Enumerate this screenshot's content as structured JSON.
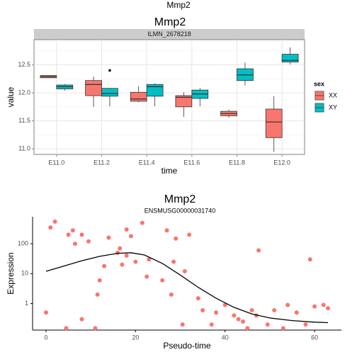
{
  "figure_title": "Mmp2",
  "colors": {
    "XX": "#F8766D",
    "XY": "#00BFC4",
    "panel": "#ffffff",
    "strip": "#cccccc",
    "grid": "#ebebeb"
  },
  "chart_data": [
    {
      "type": "box",
      "title": "Mmp2",
      "facet_label": "ILMN_2678218",
      "xlabel": "time",
      "ylabel": "value",
      "categories": [
        "E11.0",
        "E11.2",
        "E11.4",
        "E11.6",
        "E11.8",
        "E12.0"
      ],
      "ylim": [
        10.9,
        12.95
      ],
      "yticks": [
        11.0,
        11.5,
        12.0,
        12.5
      ],
      "ytick_labels": [
        "11.0",
        "11.5",
        "12.0",
        "12.5"
      ],
      "grid": true,
      "legend": {
        "title": "sex",
        "position": "right",
        "entries": [
          "XX",
          "XY"
        ]
      },
      "series": [
        {
          "name": "XX",
          "boxes": [
            {
              "min": 12.27,
              "q1": 12.27,
              "median": 12.29,
              "q3": 12.31,
              "max": 12.31
            },
            {
              "min": 11.75,
              "q1": 11.95,
              "median": 12.15,
              "q3": 12.22,
              "max": 12.29
            },
            {
              "min": 11.83,
              "q1": 11.85,
              "median": 11.89,
              "q3": 12.01,
              "max": 12.12
            },
            {
              "min": 11.57,
              "q1": 11.75,
              "median": 11.92,
              "q3": 11.95,
              "max": 12.01
            },
            {
              "min": 11.56,
              "q1": 11.59,
              "median": 11.63,
              "q3": 11.67,
              "max": 11.7
            },
            {
              "min": 10.95,
              "q1": 11.2,
              "median": 11.48,
              "q3": 11.71,
              "max": 11.94
            }
          ],
          "outliers": []
        },
        {
          "name": "XY",
          "boxes": [
            {
              "min": 12.04,
              "q1": 12.07,
              "median": 12.11,
              "q3": 12.14,
              "max": 12.16
            },
            {
              "min": 11.76,
              "q1": 11.94,
              "median": 11.99,
              "q3": 12.08,
              "max": 12.09
            },
            {
              "min": 11.76,
              "q1": 11.94,
              "median": 12.11,
              "q3": 12.15,
              "max": 12.17
            },
            {
              "min": 11.76,
              "q1": 11.9,
              "median": 11.98,
              "q3": 12.05,
              "max": 12.09
            },
            {
              "min": 12.13,
              "q1": 12.22,
              "median": 12.32,
              "q3": 12.43,
              "max": 12.54
            },
            {
              "min": 12.51,
              "q1": 12.55,
              "median": 12.58,
              "q3": 12.69,
              "max": 12.81
            }
          ],
          "outliers": [
            {
              "category": "E11.2",
              "value": 12.4
            }
          ]
        }
      ]
    },
    {
      "type": "scatter",
      "title": "Mmp2",
      "subtitle": "ENSMUSG00000031740",
      "xlabel": "Pseudo-time",
      "ylabel": "Expression",
      "y_scale": "log",
      "xlim": [
        -3,
        66
      ],
      "ylim": [
        0.13,
        800
      ],
      "xticks": [
        0,
        20,
        40,
        60
      ],
      "xtick_labels": [
        "0",
        "20",
        "40",
        "60"
      ],
      "yticks": [
        1,
        10,
        100
      ],
      "ytick_labels": [
        "1",
        "10",
        "100"
      ],
      "grid": false,
      "points": [
        {
          "x": 0,
          "y": 0.5
        },
        {
          "x": 1,
          "y": 350
        },
        {
          "x": 2,
          "y": 550
        },
        {
          "x": 5,
          "y": 200
        },
        {
          "x": 4.5,
          "y": 0.15
        },
        {
          "x": 6,
          "y": 280
        },
        {
          "x": 6.5,
          "y": 100
        },
        {
          "x": 8,
          "y": 0.3
        },
        {
          "x": 8,
          "y": 200
        },
        {
          "x": 9.5,
          "y": 120
        },
        {
          "x": 11,
          "y": 0.15
        },
        {
          "x": 11.5,
          "y": 2
        },
        {
          "x": 12,
          "y": 6
        },
        {
          "x": 13,
          "y": 18
        },
        {
          "x": 14,
          "y": 160
        },
        {
          "x": 16,
          "y": 50
        },
        {
          "x": 16.5,
          "y": 70
        },
        {
          "x": 17,
          "y": 20
        },
        {
          "x": 18,
          "y": 300
        },
        {
          "x": 18,
          "y": 40
        },
        {
          "x": 19,
          "y": 180
        },
        {
          "x": 20,
          "y": 25
        },
        {
          "x": 21.5,
          "y": 500
        },
        {
          "x": 22.5,
          "y": 8
        },
        {
          "x": 23,
          "y": 30
        },
        {
          "x": 26,
          "y": 6
        },
        {
          "x": 27,
          "y": 280
        },
        {
          "x": 28,
          "y": 2
        },
        {
          "x": 28.5,
          "y": 25
        },
        {
          "x": 29,
          "y": 150
        },
        {
          "x": 30.5,
          "y": 0.2
        },
        {
          "x": 31,
          "y": 12
        },
        {
          "x": 32,
          "y": 200
        },
        {
          "x": 34,
          "y": 1.5
        },
        {
          "x": 35,
          "y": 0.6
        },
        {
          "x": 37,
          "y": 0.2
        },
        {
          "x": 38,
          "y": 0.5
        },
        {
          "x": 40,
          "y": 0.9
        },
        {
          "x": 42,
          "y": 0.4
        },
        {
          "x": 43,
          "y": 0.3
        },
        {
          "x": 44,
          "y": 0.25
        },
        {
          "x": 45,
          "y": 0.15
        },
        {
          "x": 46,
          "y": 0.6
        },
        {
          "x": 47,
          "y": 0.4
        },
        {
          "x": 47.5,
          "y": 60
        },
        {
          "x": 49.5,
          "y": 0.2
        },
        {
          "x": 51,
          "y": 0.6
        },
        {
          "x": 53,
          "y": 0.15
        },
        {
          "x": 54,
          "y": 0.9
        },
        {
          "x": 56,
          "y": 0.5
        },
        {
          "x": 58,
          "y": 0.2
        },
        {
          "x": 59,
          "y": 30
        },
        {
          "x": 60,
          "y": 0.8
        },
        {
          "x": 62,
          "y": 0.9
        },
        {
          "x": 63,
          "y": 0.7
        }
      ],
      "fit_curve": [
        {
          "x": 0,
          "y": 12
        },
        {
          "x": 4,
          "y": 18
        },
        {
          "x": 8,
          "y": 27
        },
        {
          "x": 12,
          "y": 38
        },
        {
          "x": 16,
          "y": 48
        },
        {
          "x": 19,
          "y": 50
        },
        {
          "x": 22,
          "y": 42
        },
        {
          "x": 26,
          "y": 22
        },
        {
          "x": 30,
          "y": 9
        },
        {
          "x": 34,
          "y": 3.5
        },
        {
          "x": 38,
          "y": 1.5
        },
        {
          "x": 42,
          "y": 0.75
        },
        {
          "x": 46,
          "y": 0.45
        },
        {
          "x": 50,
          "y": 0.33
        },
        {
          "x": 55,
          "y": 0.27
        },
        {
          "x": 60,
          "y": 0.24
        },
        {
          "x": 63,
          "y": 0.23
        }
      ]
    }
  ]
}
